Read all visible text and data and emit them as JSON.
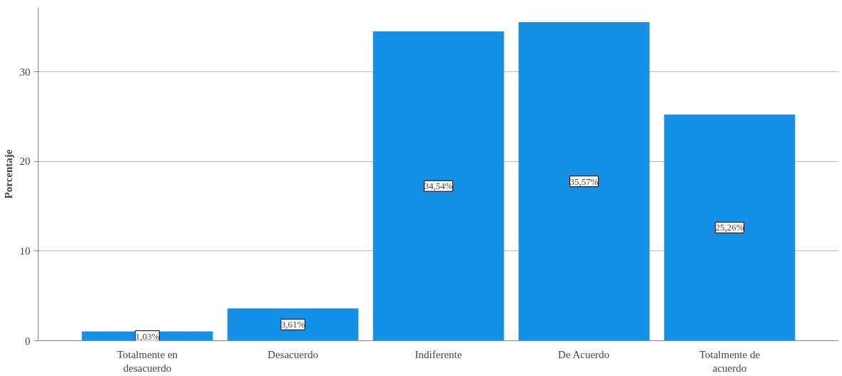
{
  "chart_data": {
    "type": "bar",
    "ylabel": "Porcentaje",
    "categories": [
      "Totalmente en desacuerdo",
      "Desacuerdo",
      "Indiferente",
      "De Acuerdo",
      "Totalmente de acuerdo"
    ],
    "values": [
      1.03,
      3.61,
      34.54,
      35.57,
      25.26
    ],
    "value_labels": [
      "1,03%",
      "3,61%",
      "34,54%",
      "35,57%",
      "25,26%"
    ],
    "color": "#1490e6",
    "ylim": [
      0,
      37.2
    ],
    "yticks": [
      0,
      10,
      20,
      30
    ],
    "grid": "y"
  }
}
